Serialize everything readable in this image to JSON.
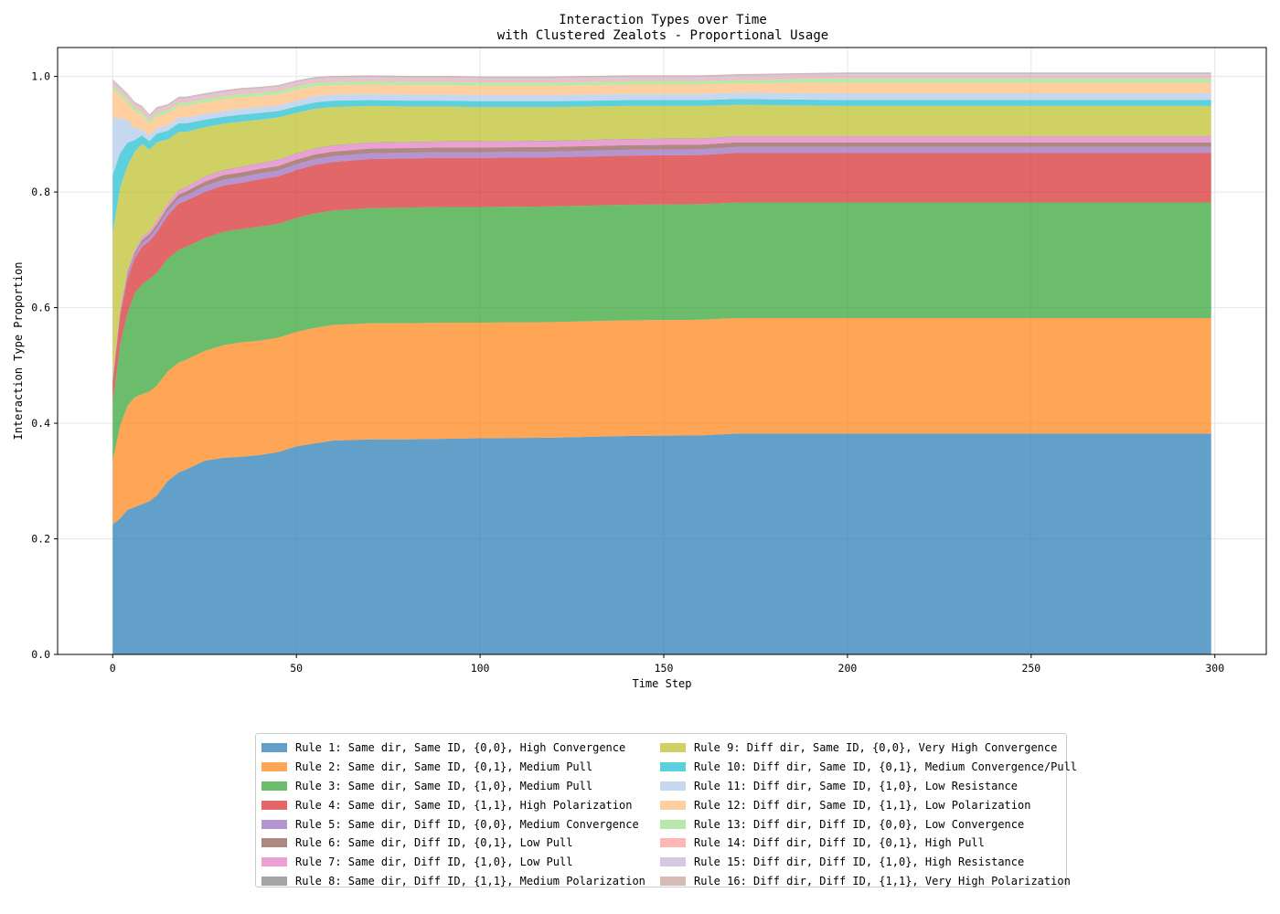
{
  "chart_data": {
    "type": "area",
    "stacked": true,
    "title": "Interaction Types over Time\nwith Clustered Zealots - Proportional Usage",
    "title_lines": [
      "Interaction Types over Time",
      "with Clustered Zealots - Proportional Usage"
    ],
    "xlabel": "Time Step",
    "ylabel": "Interaction Type Proportion",
    "xlim": [
      -15,
      314
    ],
    "ylim": [
      0,
      1.05
    ],
    "xticks": [
      0,
      50,
      100,
      150,
      200,
      250,
      300
    ],
    "yticks": [
      0.0,
      0.2,
      0.4,
      0.6,
      0.8,
      1.0
    ],
    "xtick_labels": [
      "0",
      "50",
      "100",
      "150",
      "200",
      "250",
      "300"
    ],
    "ytick_labels": [
      "0.0",
      "0.2",
      "0.4",
      "0.6",
      "0.8",
      "1.0"
    ],
    "grid": true,
    "legend_placement": "below",
    "x": [
      0,
      2,
      4,
      6,
      8,
      10,
      12,
      15,
      18,
      20,
      25,
      30,
      35,
      40,
      45,
      50,
      55,
      60,
      70,
      80,
      90,
      100,
      120,
      140,
      160,
      170,
      200,
      250,
      299
    ],
    "series": [
      {
        "name": "Rule 1: Same dir, Same ID, {0,0}, High Convergence",
        "color": "#1f77b4",
        "values": [
          0.225,
          0.235,
          0.25,
          0.255,
          0.26,
          0.265,
          0.275,
          0.3,
          0.315,
          0.32,
          0.335,
          0.34,
          0.342,
          0.345,
          0.35,
          0.36,
          0.365,
          0.37,
          0.372,
          0.372,
          0.373,
          0.374,
          0.375,
          0.378,
          0.379,
          0.382,
          0.382,
          0.382,
          0.382
        ]
      },
      {
        "name": "Rule 2: Same dir, Same ID, {0,1}, Medium Pull",
        "color": "#ff7f0e",
        "values": [
          0.11,
          0.16,
          0.18,
          0.19,
          0.19,
          0.19,
          0.19,
          0.19,
          0.19,
          0.19,
          0.19,
          0.195,
          0.198,
          0.198,
          0.198,
          0.198,
          0.2,
          0.2,
          0.201,
          0.201,
          0.201,
          0.2,
          0.2,
          0.2,
          0.2,
          0.2,
          0.2,
          0.2,
          0.2
        ]
      },
      {
        "name": "Rule 3: Same dir, Same ID, {1,0}, Medium Pull",
        "color": "#2ca02c",
        "values": [
          0.1,
          0.14,
          0.16,
          0.18,
          0.19,
          0.195,
          0.195,
          0.195,
          0.195,
          0.195,
          0.195,
          0.196,
          0.196,
          0.197,
          0.197,
          0.197,
          0.198,
          0.198,
          0.199,
          0.2,
          0.2,
          0.2,
          0.2,
          0.2,
          0.2,
          0.2,
          0.2,
          0.2,
          0.2
        ]
      },
      {
        "name": "Rule 4: Same dir, Same ID, {1,1}, High Polarization",
        "color": "#d62728",
        "values": [
          0.035,
          0.05,
          0.06,
          0.06,
          0.065,
          0.065,
          0.07,
          0.075,
          0.08,
          0.08,
          0.08,
          0.08,
          0.08,
          0.082,
          0.082,
          0.083,
          0.084,
          0.084,
          0.085,
          0.085,
          0.085,
          0.085,
          0.085,
          0.085,
          0.085,
          0.086,
          0.086,
          0.086,
          0.086
        ]
      },
      {
        "name": "Rule 5: Same dir, Diff ID, {0,0}, Medium Convergence",
        "color": "#9467bd",
        "values": [
          0.004,
          0.005,
          0.006,
          0.006,
          0.007,
          0.007,
          0.008,
          0.008,
          0.009,
          0.009,
          0.01,
          0.01,
          0.01,
          0.01,
          0.01,
          0.01,
          0.01,
          0.01,
          0.01,
          0.01,
          0.01,
          0.01,
          0.01,
          0.01,
          0.01,
          0.01,
          0.01,
          0.01,
          0.01
        ]
      },
      {
        "name": "Rule 6: Same dir, Diff ID, {0,1}, Low Pull",
        "color": "#8c564b",
        "values": [
          0.002,
          0.003,
          0.004,
          0.004,
          0.005,
          0.005,
          0.006,
          0.006,
          0.007,
          0.007,
          0.008,
          0.008,
          0.008,
          0.008,
          0.008,
          0.008,
          0.008,
          0.008,
          0.008,
          0.008,
          0.008,
          0.008,
          0.008,
          0.008,
          0.008,
          0.008,
          0.008,
          0.008,
          0.008
        ]
      },
      {
        "name": "Rule 7: Same dir, Diff ID, {1,0}, Low Pull",
        "color": "#e377c2",
        "values": [
          0.002,
          0.003,
          0.004,
          0.004,
          0.005,
          0.005,
          0.006,
          0.006,
          0.007,
          0.007,
          0.008,
          0.008,
          0.009,
          0.009,
          0.01,
          0.01,
          0.01,
          0.01,
          0.01,
          0.01,
          0.01,
          0.01,
          0.01,
          0.01,
          0.01,
          0.01,
          0.01,
          0.01,
          0.01
        ]
      },
      {
        "name": "Rule 8: Same dir, Diff ID, {1,1}, Medium Polarization",
        "color": "#7f7f7f",
        "values": [
          0.001,
          0.001,
          0.001,
          0.001,
          0.001,
          0.001,
          0.001,
          0.001,
          0.001,
          0.001,
          0.001,
          0.001,
          0.001,
          0.001,
          0.001,
          0.001,
          0.001,
          0.001,
          0.001,
          0.001,
          0.001,
          0.001,
          0.001,
          0.001,
          0.001,
          0.001,
          0.001,
          0.001,
          0.001
        ]
      },
      {
        "name": "Rule 9: Diff dir, Same ID, {0,0}, Very High Convergence",
        "color": "#bcbd22",
        "values": [
          0.25,
          0.21,
          0.18,
          0.17,
          0.16,
          0.14,
          0.135,
          0.11,
          0.1,
          0.095,
          0.085,
          0.08,
          0.078,
          0.075,
          0.073,
          0.07,
          0.068,
          0.066,
          0.063,
          0.061,
          0.06,
          0.059,
          0.058,
          0.057,
          0.056,
          0.054,
          0.052,
          0.052,
          0.052
        ]
      },
      {
        "name": "Rule 10: Diff dir, Same ID, {0,1}, Medium Convergence/Pull",
        "color": "#17becf",
        "values": [
          0.1,
          0.06,
          0.04,
          0.02,
          0.015,
          0.015,
          0.015,
          0.015,
          0.015,
          0.015,
          0.013,
          0.012,
          0.012,
          0.012,
          0.011,
          0.011,
          0.011,
          0.011,
          0.01,
          0.01,
          0.01,
          0.01,
          0.01,
          0.01,
          0.01,
          0.01,
          0.01,
          0.01,
          0.01
        ]
      },
      {
        "name": "Rule 11: Diff dir, Same ID, {1,0}, Low Resistance",
        "color": "#aec7e8",
        "values": [
          0.1,
          0.06,
          0.04,
          0.02,
          0.01,
          0.01,
          0.01,
          0.01,
          0.01,
          0.01,
          0.01,
          0.01,
          0.01,
          0.01,
          0.01,
          0.01,
          0.011,
          0.011,
          0.011,
          0.011,
          0.011,
          0.011,
          0.011,
          0.011,
          0.011,
          0.011,
          0.012,
          0.012,
          0.012
        ]
      },
      {
        "name": "Rule 12: Diff dir, Same ID, {1,1}, Low Polarization",
        "color": "#ffbb78",
        "values": [
          0.05,
          0.04,
          0.03,
          0.03,
          0.025,
          0.02,
          0.02,
          0.02,
          0.02,
          0.02,
          0.02,
          0.02,
          0.02,
          0.019,
          0.019,
          0.019,
          0.017,
          0.016,
          0.016,
          0.016,
          0.016,
          0.016,
          0.016,
          0.016,
          0.016,
          0.016,
          0.018,
          0.018,
          0.018
        ]
      },
      {
        "name": "Rule 13: Diff dir, Diff ID, {0,0}, Low Convergence",
        "color": "#98df8a",
        "values": [
          0.006,
          0.006,
          0.006,
          0.006,
          0.006,
          0.006,
          0.006,
          0.006,
          0.006,
          0.006,
          0.006,
          0.006,
          0.006,
          0.006,
          0.006,
          0.006,
          0.006,
          0.006,
          0.006,
          0.006,
          0.006,
          0.006,
          0.006,
          0.006,
          0.006,
          0.006,
          0.008,
          0.008,
          0.008
        ]
      },
      {
        "name": "Rule 14: Diff dir, Diff ID, {0,1}, High Pull",
        "color": "#ff9896",
        "values": [
          0.003,
          0.003,
          0.003,
          0.003,
          0.003,
          0.003,
          0.003,
          0.003,
          0.003,
          0.003,
          0.003,
          0.003,
          0.003,
          0.003,
          0.003,
          0.003,
          0.003,
          0.003,
          0.003,
          0.003,
          0.003,
          0.003,
          0.003,
          0.003,
          0.003,
          0.003,
          0.003,
          0.003,
          0.003
        ]
      },
      {
        "name": "Rule 15: Diff dir, Diff ID, {1,0}, High Resistance",
        "color": "#c5b0d5",
        "values": [
          0.004,
          0.004,
          0.004,
          0.004,
          0.004,
          0.004,
          0.004,
          0.004,
          0.004,
          0.004,
          0.004,
          0.004,
          0.004,
          0.004,
          0.004,
          0.004,
          0.004,
          0.004,
          0.004,
          0.004,
          0.004,
          0.004,
          0.004,
          0.004,
          0.004,
          0.004,
          0.004,
          0.004,
          0.004
        ]
      },
      {
        "name": "Rule 16: Diff dir, Diff ID, {1,1}, Very High Polarization",
        "color": "#c49c94",
        "values": [
          0.003,
          0.003,
          0.003,
          0.003,
          0.003,
          0.003,
          0.003,
          0.003,
          0.003,
          0.003,
          0.003,
          0.003,
          0.003,
          0.003,
          0.003,
          0.003,
          0.003,
          0.003,
          0.003,
          0.003,
          0.003,
          0.003,
          0.003,
          0.003,
          0.003,
          0.003,
          0.003,
          0.003,
          0.003
        ]
      }
    ]
  }
}
